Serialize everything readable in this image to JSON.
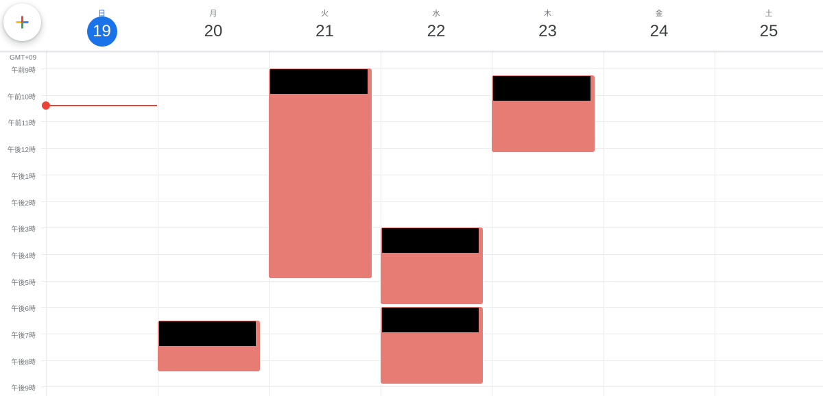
{
  "create_button": {
    "icon": "google-plus-icon"
  },
  "timezone_label": "GMT+09",
  "days": [
    {
      "dow": "日",
      "num": "19",
      "today": true
    },
    {
      "dow": "月",
      "num": "20",
      "today": false
    },
    {
      "dow": "火",
      "num": "21",
      "today": false
    },
    {
      "dow": "水",
      "num": "22",
      "today": false
    },
    {
      "dow": "木",
      "num": "23",
      "today": false
    },
    {
      "dow": "金",
      "num": "24",
      "today": false
    },
    {
      "dow": "土",
      "num": "25",
      "today": false
    }
  ],
  "hour_labels": [
    "午前9時",
    "午前10時",
    "午前11時",
    "午後12時",
    "午後1時",
    "午後2時",
    "午後3時",
    "午後4時",
    "午後5時",
    "午後6時",
    "午後7時",
    "午後8時",
    "午後9時"
  ],
  "colors": {
    "today": "#1a73e8",
    "event": "#e67c73",
    "now_indicator": "#ea4335",
    "redacted": "#000000"
  },
  "now_indicator": {
    "day_index": 0,
    "hours_after_9": 1.4
  },
  "events": [
    {
      "day_index": 2,
      "start_hours_after_9": 0.0,
      "duration_hours": 7.9,
      "title_redacted": true
    },
    {
      "day_index": 4,
      "start_hours_after_9": 0.25,
      "duration_hours": 2.9,
      "title_redacted": true
    },
    {
      "day_index": 3,
      "start_hours_after_9": 6.0,
      "duration_hours": 2.9,
      "title_redacted": true
    },
    {
      "day_index": 3,
      "start_hours_after_9": 9.0,
      "duration_hours": 2.9,
      "title_redacted": true
    },
    {
      "day_index": 1,
      "start_hours_after_9": 9.5,
      "duration_hours": 1.9,
      "title_redacted": true
    }
  ]
}
